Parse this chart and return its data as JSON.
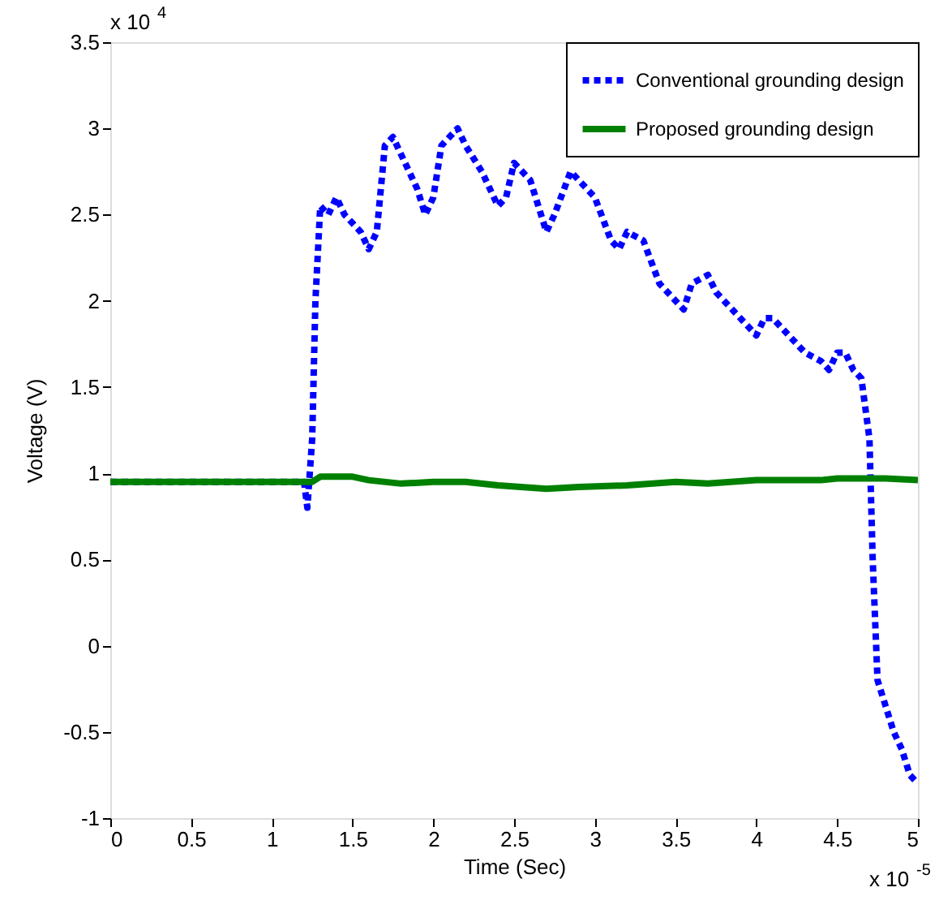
{
  "chart_data": {
    "type": "line",
    "xlabel": "Time (Sec)",
    "ylabel": "Voltage (V)",
    "xlim": [
      0,
      5
    ],
    "ylim": [
      -1,
      3.5
    ],
    "xticks": [
      0,
      0.5,
      1,
      1.5,
      2,
      2.5,
      3,
      3.5,
      4,
      4.5,
      5
    ],
    "yticks": [
      -1,
      -0.5,
      0,
      0.5,
      1,
      1.5,
      2,
      2.5,
      3,
      3.5
    ],
    "annotations": [
      "x 10$^{4}$",
      "x 10$^{-5}$"
    ],
    "grid": false,
    "legend": "top right",
    "marker": "none",
    "series": [
      {
        "name": "Conventional grounding design",
        "color": "#0000ff",
        "line_style": "dotted",
        "x": [
          0,
          1.2,
          1.22,
          1.25,
          1.27,
          1.3,
          1.35,
          1.4,
          1.45,
          1.5,
          1.55,
          1.6,
          1.65,
          1.7,
          1.75,
          1.8,
          1.85,
          1.9,
          1.95,
          2,
          2.05,
          2.1,
          2.15,
          2.2,
          2.3,
          2.4,
          2.45,
          2.5,
          2.6,
          2.7,
          2.75,
          2.85,
          2.9,
          3,
          3.1,
          3.15,
          3.2,
          3.3,
          3.4,
          3.5,
          3.55,
          3.6,
          3.7,
          3.75,
          3.85,
          3.95,
          4,
          4.05,
          4.1,
          4.2,
          4.3,
          4.4,
          4.45,
          4.5,
          4.55,
          4.6,
          4.65,
          4.7,
          4.72,
          4.75,
          4.8,
          4.85,
          4.9,
          4.95,
          5
        ],
        "values": [
          0.95,
          0.95,
          0.8,
          1.2,
          2.0,
          2.55,
          2.5,
          2.6,
          2.5,
          2.45,
          2.4,
          2.3,
          2.4,
          2.9,
          2.95,
          2.85,
          2.75,
          2.65,
          2.5,
          2.6,
          2.9,
          2.95,
          3.0,
          2.9,
          2.75,
          2.55,
          2.6,
          2.8,
          2.7,
          2.4,
          2.5,
          2.75,
          2.7,
          2.6,
          2.35,
          2.3,
          2.4,
          2.35,
          2.1,
          2.0,
          1.95,
          2.1,
          2.15,
          2.05,
          1.95,
          1.85,
          1.8,
          1.9,
          1.9,
          1.8,
          1.7,
          1.65,
          1.6,
          1.7,
          1.7,
          1.6,
          1.55,
          1.2,
          0.5,
          -0.2,
          -0.35,
          -0.5,
          -0.6,
          -0.75,
          -0.8
        ]
      },
      {
        "name": "Proposed grounding design",
        "color": "#008000",
        "line_style": "solid",
        "x": [
          0,
          1.25,
          1.3,
          1.5,
          1.6,
          1.8,
          2,
          2.2,
          2.4,
          2.7,
          2.9,
          3.2,
          3.5,
          3.7,
          4,
          4.4,
          4.5,
          4.8,
          5
        ],
        "values": [
          0.95,
          0.95,
          0.98,
          0.98,
          0.96,
          0.94,
          0.95,
          0.95,
          0.93,
          0.91,
          0.92,
          0.93,
          0.95,
          0.94,
          0.96,
          0.96,
          0.97,
          0.97,
          0.96
        ]
      }
    ]
  }
}
